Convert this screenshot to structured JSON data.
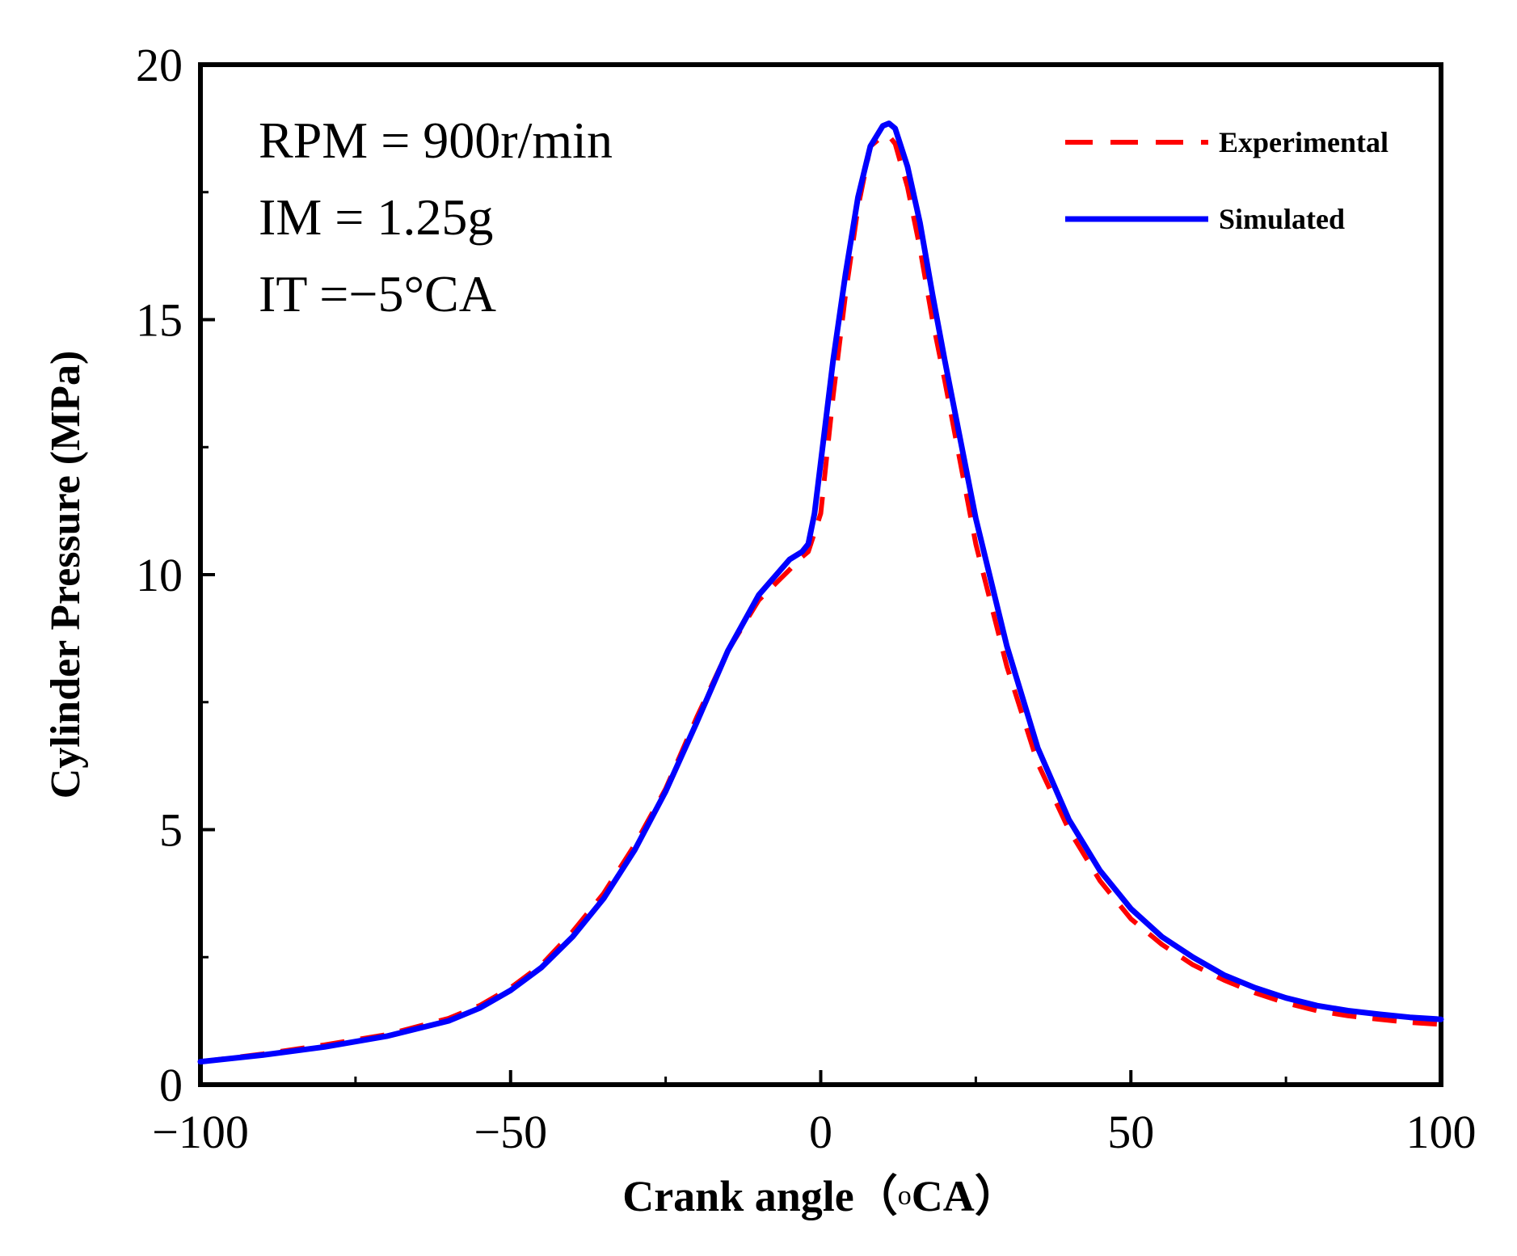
{
  "chart_data": {
    "type": "line",
    "title": "",
    "xlabel": "Crank angle（",
    "xlabel_superscript": "o",
    "xlabel_unit": "CA）",
    "ylabel": "Cylinder Pressure (MPa)",
    "xlim": [
      -100,
      100
    ],
    "ylim": [
      0,
      20
    ],
    "x_ticks": [
      -100,
      -50,
      0,
      50,
      100
    ],
    "x_tick_labels": [
      "−100",
      "−50",
      "0",
      "50",
      "100"
    ],
    "y_ticks": [
      0,
      5,
      10,
      15,
      20
    ],
    "y_tick_labels": [
      "0",
      "5",
      "10",
      "15",
      "20"
    ],
    "grid": false,
    "legend_position": "top-right",
    "annotations": [
      "RPM = 900r/min",
      "IM = 1.25g",
      "IT =−5°CA"
    ],
    "series": [
      {
        "name": "Experimental",
        "color": "#ff0000",
        "style": "dashed",
        "x": [
          -100,
          -90,
          -80,
          -70,
          -60,
          -55,
          -50,
          -45,
          -40,
          -35,
          -30,
          -25,
          -20,
          -15,
          -10,
          -5,
          -3,
          -2,
          0,
          2,
          4,
          6,
          8,
          10,
          11,
          12,
          14,
          16,
          18,
          20,
          25,
          30,
          35,
          40,
          45,
          50,
          55,
          60,
          65,
          70,
          75,
          80,
          85,
          90,
          95,
          100
        ],
        "values": [
          0.45,
          0.6,
          0.78,
          0.98,
          1.3,
          1.55,
          1.9,
          2.35,
          3.0,
          3.75,
          4.7,
          5.8,
          7.2,
          8.5,
          9.5,
          10.1,
          10.35,
          10.45,
          11.2,
          13.5,
          15.5,
          17.2,
          18.4,
          18.6,
          18.6,
          18.45,
          17.6,
          16.4,
          15.0,
          13.8,
          10.6,
          8.2,
          6.3,
          5.0,
          4.0,
          3.25,
          2.75,
          2.35,
          2.05,
          1.8,
          1.6,
          1.45,
          1.35,
          1.28,
          1.22,
          1.18
        ]
      },
      {
        "name": "Simulated",
        "color": "#0000ff",
        "style": "solid",
        "x": [
          -100,
          -90,
          -80,
          -70,
          -60,
          -55,
          -50,
          -45,
          -40,
          -35,
          -30,
          -25,
          -20,
          -15,
          -10,
          -5,
          -3,
          -2,
          -1,
          0,
          2,
          4,
          6,
          8,
          10,
          11,
          12,
          14,
          16,
          18,
          20,
          25,
          30,
          35,
          40,
          45,
          50,
          55,
          60,
          65,
          70,
          75,
          80,
          85,
          90,
          95,
          100
        ],
        "values": [
          0.45,
          0.58,
          0.74,
          0.95,
          1.25,
          1.5,
          1.85,
          2.3,
          2.9,
          3.65,
          4.6,
          5.75,
          7.1,
          8.5,
          9.6,
          10.3,
          10.45,
          10.6,
          11.2,
          12.2,
          14.2,
          15.9,
          17.4,
          18.4,
          18.8,
          18.85,
          18.75,
          18.0,
          16.9,
          15.5,
          14.2,
          11.1,
          8.6,
          6.6,
          5.2,
          4.2,
          3.45,
          2.9,
          2.5,
          2.15,
          1.9,
          1.7,
          1.55,
          1.45,
          1.38,
          1.32,
          1.28
        ]
      }
    ]
  }
}
